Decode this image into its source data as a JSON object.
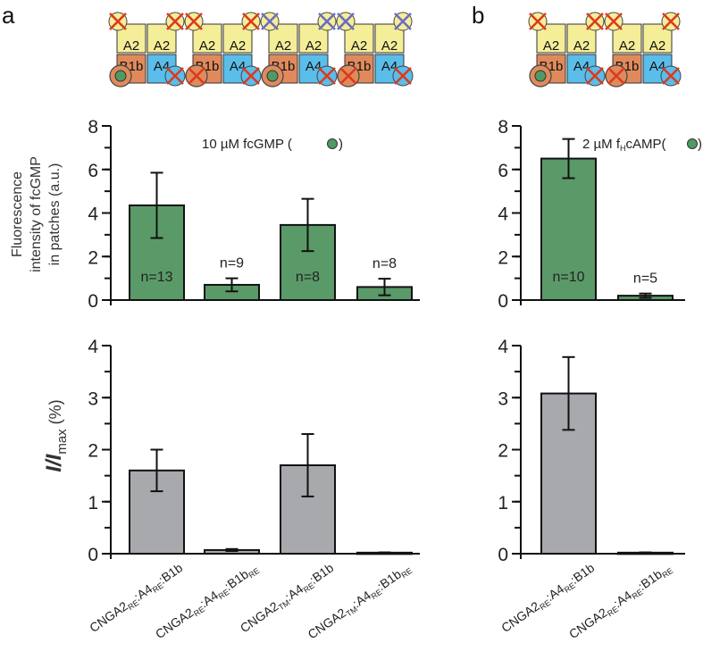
{
  "panel_letters": [
    "a",
    "b"
  ],
  "colors": {
    "green_bar": "#5a9a68",
    "grey_bar": "#a8a9ad",
    "A2_yellow": "#f5ee98",
    "B1b_orange": "#e08a5c",
    "A4_blue": "#5bbde9",
    "ligand_green": "#4f9a63",
    "cross_red": "#dc3a1e",
    "cross_blue": "#6a6cc4"
  },
  "schematics": [
    {
      "panel": "a",
      "a2_left_cross": "red",
      "a2_right_cross": "red",
      "b1b_state": "ligand",
      "a4_cross": "red"
    },
    {
      "panel": "a",
      "a2_left_cross": "red",
      "a2_right_cross": "red",
      "b1b_state": "crossed",
      "a4_cross": "red"
    },
    {
      "panel": "a",
      "a2_left_cross": "blue",
      "a2_right_cross": "blue",
      "b1b_state": "ligand",
      "a4_cross": "red"
    },
    {
      "panel": "a",
      "a2_left_cross": "blue",
      "a2_right_cross": "blue",
      "b1b_state": "crossed",
      "a4_cross": "red"
    },
    {
      "panel": "b",
      "a2_left_cross": "red",
      "a2_right_cross": "red",
      "b1b_state": "ligand",
      "a4_cross": "red"
    },
    {
      "panel": "b",
      "a2_left_cross": "red",
      "a2_right_cross": "red",
      "b1b_state": "crossed",
      "a4_cross": "red"
    }
  ],
  "schematic_labels": {
    "a2": "A2",
    "b1b": "B1b",
    "a4": "A4"
  },
  "chart_data": [
    {
      "id": "a-top",
      "type": "bar",
      "panel": "a",
      "annotation": "10 µM fcGMP (",
      "annotation_suffix": ")",
      "ylabel_lines": [
        "Fluorescence",
        "intensity of fcGMP",
        "in patches (a.u.)"
      ],
      "ylim": [
        0,
        8
      ],
      "yticks": [
        0,
        2,
        4,
        6,
        8
      ],
      "minor_step": 1,
      "categories": [
        "CNGA2RE:A4RE:B1b",
        "CNGA2RE:A4RE:B1bRE",
        "CNGA2TM:A4RE:B1b",
        "CNGA2TM:A4RE:B1bRE"
      ],
      "values": [
        4.35,
        0.7,
        3.45,
        0.6
      ],
      "errors": [
        1.5,
        0.3,
        1.2,
        0.38
      ],
      "n_labels": [
        "n=13",
        "n=9",
        "n=8",
        "n=8"
      ],
      "n_inside": [
        true,
        false,
        true,
        false
      ],
      "color": "#5a9a68"
    },
    {
      "id": "b-top",
      "type": "bar",
      "panel": "b",
      "annotation": "2 µM f",
      "annotation_sub": "H",
      "annotation_rest": "cAMP(",
      "annotation_suffix": ")",
      "ylim": [
        0,
        8
      ],
      "yticks": [
        0,
        2,
        4,
        6,
        8
      ],
      "minor_step": 1,
      "categories": [
        "CNGA2RE:A4RE:B1b",
        "CNGA2RE:A4RE:B1bRE"
      ],
      "values": [
        6.5,
        0.2
      ],
      "errors": [
        0.9,
        0.1
      ],
      "n_labels": [
        "n=10",
        "n=5"
      ],
      "n_inside": [
        true,
        false
      ],
      "color": "#5a9a68"
    },
    {
      "id": "a-bottom",
      "type": "bar",
      "panel": "a",
      "ylabel_main": "I/I",
      "ylabel_sub": "max",
      "ylabel_unit": " (%)",
      "ylim": [
        0,
        4
      ],
      "yticks": [
        0,
        1,
        2,
        3,
        4
      ],
      "minor_step": 0.5,
      "categories": [
        "CNGA2RE:A4RE:B1b",
        "CNGA2RE:A4RE:B1bRE",
        "CNGA2TM:A4RE:B1b",
        "CNGA2TM:A4RE:B1bRE"
      ],
      "values": [
        1.6,
        0.07,
        1.7,
        0.02
      ],
      "errors": [
        0.4,
        0.02,
        0.6,
        0.005
      ],
      "color": "#a8a9ad"
    },
    {
      "id": "b-bottom",
      "type": "bar",
      "panel": "b",
      "ylim": [
        0,
        4
      ],
      "yticks": [
        0,
        1,
        2,
        3,
        4
      ],
      "minor_step": 0.5,
      "categories": [
        "CNGA2RE:A4RE:B1b",
        "CNGA2RE:A4RE:B1bRE"
      ],
      "values": [
        3.08,
        0.02
      ],
      "errors": [
        0.7,
        0.005
      ],
      "color": "#a8a9ad"
    }
  ],
  "x_tick_labels": [
    {
      "p1": "CNGA2",
      "s1": "RE",
      "p2": ":A4",
      "s2": "RE",
      "p3": ":B1b",
      "s3": ""
    },
    {
      "p1": "CNGA2",
      "s1": "RE",
      "p2": ":A4",
      "s2": "RE",
      "p3": ":B1b",
      "s3": "RE"
    },
    {
      "p1": "CNGA2",
      "s1": "TM",
      "p2": ":A4",
      "s2": "RE",
      "p3": ":B1b",
      "s3": ""
    },
    {
      "p1": "CNGA2",
      "s1": "TM",
      "p2": ":A4",
      "s2": "RE",
      "p3": ":B1b",
      "s3": "RE"
    }
  ]
}
